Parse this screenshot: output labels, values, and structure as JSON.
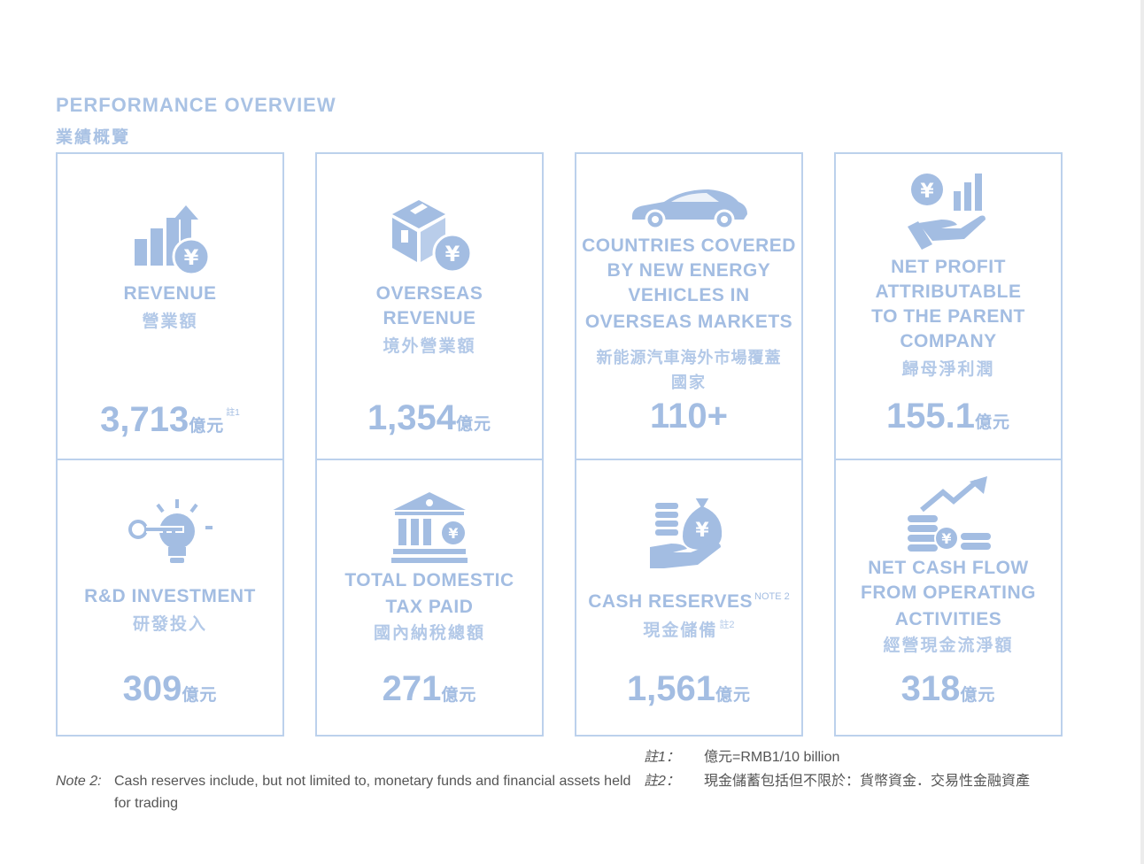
{
  "header": {
    "title_en": "PERFORMANCE OVERVIEW",
    "title_zh": "業績概覽"
  },
  "cards": {
    "revenue": {
      "label_en": "REVENUE",
      "label_zh": "營業額",
      "value": "3,713",
      "unit": "億元",
      "note_ref": "註1",
      "icon": "bar-chart-yuan-icon"
    },
    "overseas_revenue": {
      "label_en_1": "OVERSEAS",
      "label_en_2": "REVENUE",
      "label_zh": "境外營業額",
      "value": "1,354",
      "unit": "億元",
      "icon": "box-yuan-icon"
    },
    "countries": {
      "label_en_1": "COUNTRIES COVERED",
      "label_en_2": "BY NEW ENERGY",
      "label_en_3": "VEHICLES IN",
      "label_en_4": "OVERSEAS MARKETS",
      "label_zh_1": "新能源汽車海外市場覆蓋",
      "label_zh_2": "國家",
      "value": "110+",
      "icon": "car-icon"
    },
    "net_profit": {
      "label_en_1": "NET PROFIT",
      "label_en_2": "ATTRIBUTABLE",
      "label_en_3": "TO THE PARENT",
      "label_en_4": "COMPANY",
      "label_zh": "歸母淨利潤",
      "value": "155.1",
      "unit": "億元",
      "icon": "hand-yuan-chart-icon"
    },
    "rd_investment": {
      "label_en": "R&D INVESTMENT",
      "label_zh": "研發投入",
      "value": "309",
      "unit": "億元",
      "icon": "key-bulb-icon"
    },
    "tax_paid": {
      "label_en_1": "TOTAL DOMESTIC",
      "label_en_2": "TAX PAID",
      "label_zh": "國內納稅總額",
      "value": "271",
      "unit": "億元",
      "icon": "bank-icon"
    },
    "cash_reserves": {
      "label_en": "CASH RESERVES",
      "note_ref_en": "Note 2",
      "label_zh": "現金儲備",
      "note_ref_zh": "註2",
      "value": "1,561",
      "unit": "億元",
      "icon": "money-bag-hand-icon"
    },
    "operating_cash_flow": {
      "label_en_1": "NET CASH FLOW",
      "label_en_2": "FROM OPERATING",
      "label_en_3": "ACTIVITIES",
      "label_zh": "經營現金流淨額",
      "value": "318",
      "unit": "億元",
      "icon": "coins-arrow-icon"
    }
  },
  "notes": {
    "note2_tag": "Note 2:",
    "note2_text": "Cash reserves include, but not limited to, monetary funds and financial assets held for trading",
    "zh_note1_tag": "註1：",
    "zh_note1_text": "億元=RMB1/10 billion",
    "zh_note2_tag": "註2：",
    "zh_note2_text": "現金儲蓄包括但不限於：貨幣資金．交易性金融資產"
  },
  "colors": {
    "accent": "#a3bde2",
    "border": "#bcd1ec"
  }
}
